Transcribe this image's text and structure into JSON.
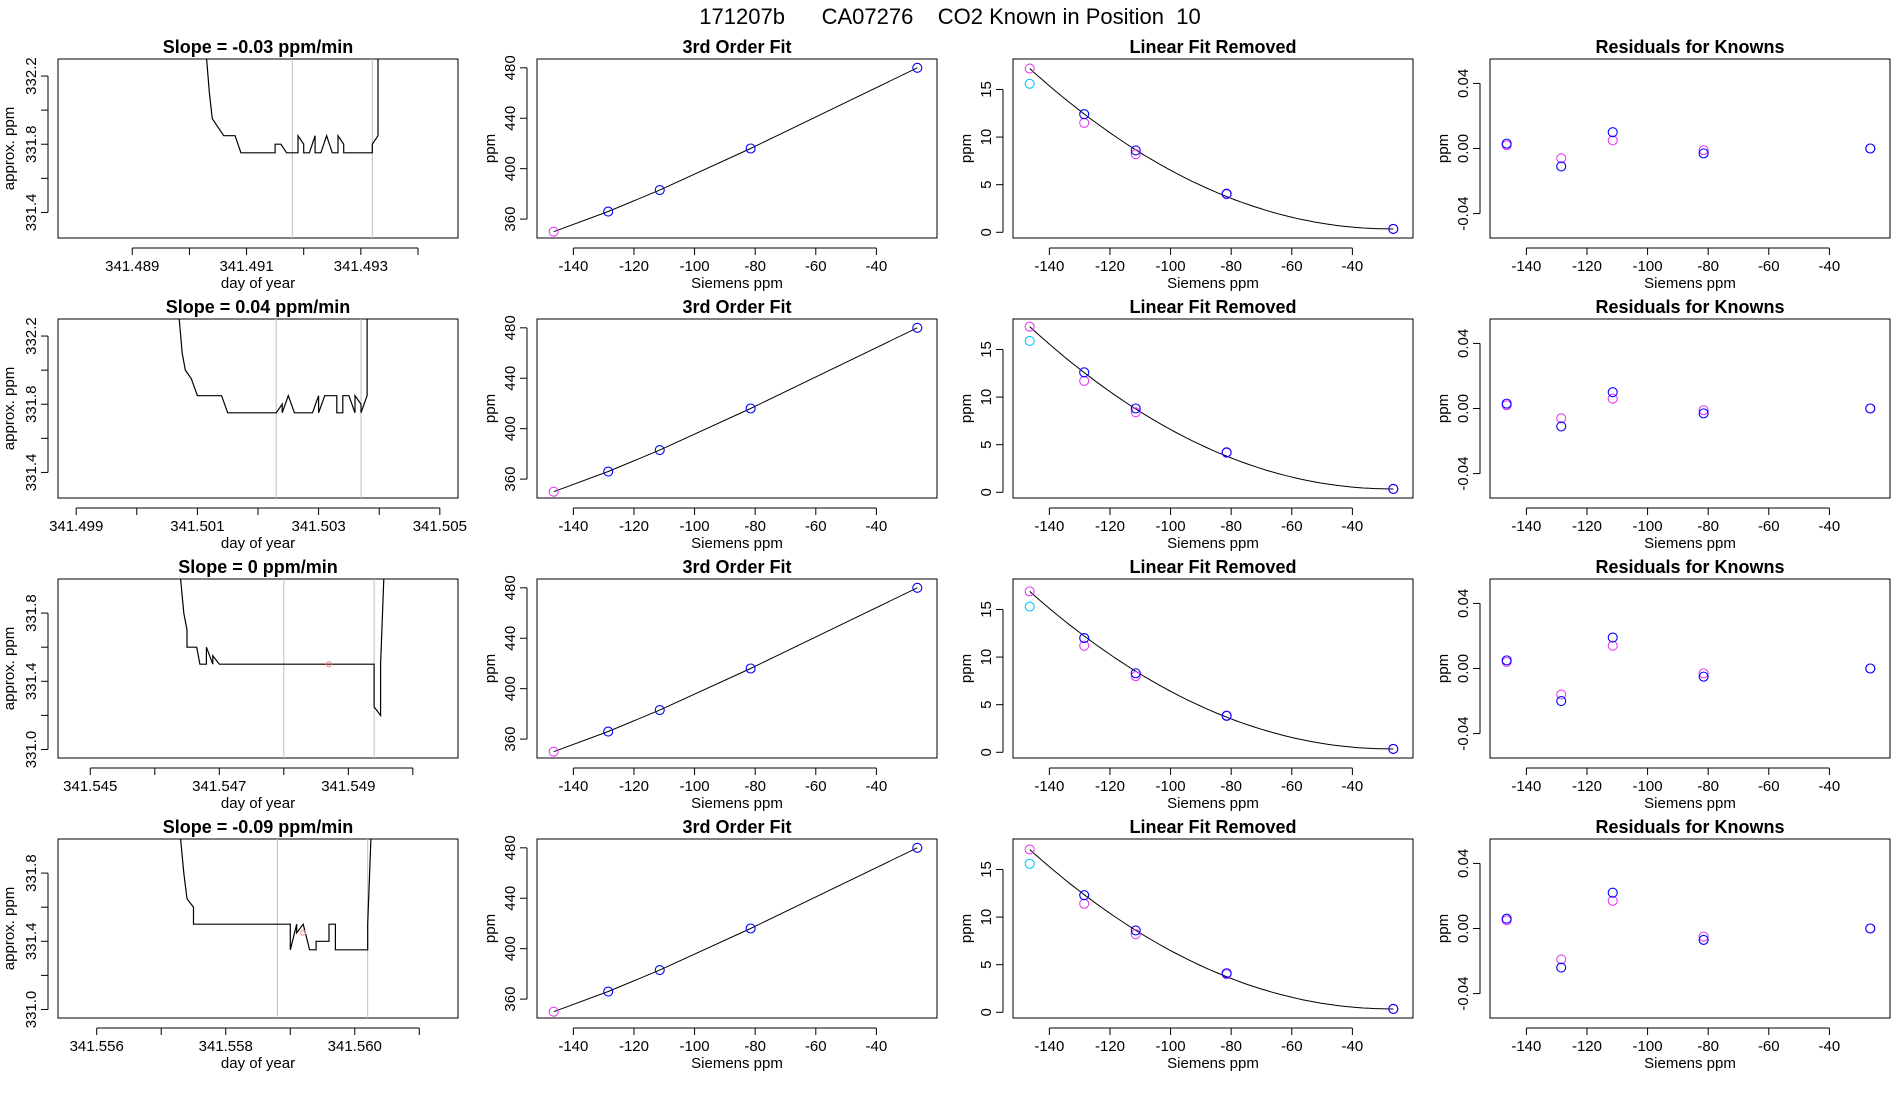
{
  "figure": {
    "title": "171207b      CA07276    CO2 Known in Position  10",
    "colors": {
      "line": "#000000",
      "grid": "#bebebe",
      "blue": "#0000ff",
      "magenta": "#e63cf5",
      "cyan": "#00c8ff",
      "pink": "#ff8080"
    }
  },
  "chart_data": [
    {
      "type": "line",
      "row": 1,
      "panel": "timeseries",
      "title": "Slope =  -0.03  ppm/min",
      "xlabel": "day of year",
      "ylabel": "approx. ppm",
      "xlim": [
        341.4877,
        341.4947
      ],
      "ylim": [
        331.25,
        332.3
      ],
      "x_ticks": [
        341.489,
        341.49,
        341.491,
        341.492,
        341.493,
        341.494
      ],
      "x_tick_labels": [
        "341.489",
        "",
        "341.491",
        "",
        "341.493",
        ""
      ],
      "y_ticks": [
        331.4,
        331.6,
        331.8,
        332.0,
        332.2
      ],
      "y_tick_labels": [
        "331.4",
        "",
        "331.8",
        "",
        "332.2"
      ],
      "vlines": [
        341.4918,
        341.4932
      ],
      "series": [
        {
          "x": [
            341.4903,
            341.49035,
            341.4904,
            341.4905,
            341.4906,
            341.49065,
            341.4908,
            341.4909,
            341.4915,
            341.4915,
            341.4916,
            341.4917,
            341.4917,
            341.4918,
            341.4919,
            341.4919,
            341.492,
            341.492,
            341.4921,
            341.4922,
            341.4922,
            341.4923,
            341.4923,
            341.4924,
            341.4924,
            341.4925,
            341.4926,
            341.4926,
            341.4927,
            341.4927,
            341.4932,
            341.4932,
            341.4933,
            341.4933
          ],
          "y": [
            332.3,
            332.1,
            331.95,
            331.9,
            331.85,
            331.85,
            331.85,
            331.75,
            331.75,
            331.8,
            331.8,
            331.75,
            331.75,
            331.75,
            331.75,
            331.85,
            331.8,
            331.75,
            331.75,
            331.85,
            331.75,
            331.75,
            331.75,
            331.85,
            331.85,
            331.75,
            331.75,
            331.85,
            331.8,
            331.75,
            331.75,
            331.8,
            331.85,
            332.3
          ]
        }
      ]
    },
    {
      "type": "line",
      "row": 2,
      "panel": "timeseries",
      "title": "Slope =  0.04  ppm/min",
      "xlabel": "day of year",
      "ylabel": "approx. ppm",
      "xlim": [
        341.4987,
        341.5053
      ],
      "ylim": [
        331.25,
        332.3
      ],
      "x_ticks": [
        341.499,
        341.5,
        341.501,
        341.502,
        341.503,
        341.504,
        341.505
      ],
      "x_tick_labels": [
        "341.499",
        "",
        "341.501",
        "",
        "341.503",
        "",
        "341.505"
      ],
      "y_ticks": [
        331.4,
        331.6,
        331.8,
        332.0,
        332.2
      ],
      "y_tick_labels": [
        "331.4",
        "",
        "331.8",
        "",
        "332.2"
      ],
      "vlines": [
        341.5023,
        341.5037
      ],
      "series": [
        {
          "x": [
            341.5007,
            341.50075,
            341.5008,
            341.5009,
            341.501,
            341.50105,
            341.5014,
            341.5015,
            341.5023,
            341.5023,
            341.5024,
            341.5024,
            341.5025,
            341.5025,
            341.5026,
            341.5029,
            341.503,
            341.503,
            341.5031,
            341.5031,
            341.5033,
            341.5033,
            341.5034,
            341.5034,
            341.5035,
            341.5035,
            341.5036,
            341.5036,
            341.5037,
            341.5037,
            341.5038,
            341.5038
          ],
          "y": [
            332.3,
            332.1,
            332.0,
            331.95,
            331.85,
            331.85,
            331.85,
            331.75,
            331.75,
            331.75,
            331.8,
            331.75,
            331.85,
            331.85,
            331.75,
            331.75,
            331.85,
            331.75,
            331.85,
            331.85,
            331.85,
            331.75,
            331.75,
            331.85,
            331.85,
            331.85,
            331.75,
            331.85,
            331.8,
            331.75,
            331.85,
            332.3
          ]
        }
      ]
    },
    {
      "type": "line",
      "row": 3,
      "panel": "timeseries",
      "title": "Slope =  0  ppm/min",
      "xlabel": "day of year",
      "ylabel": "approx. ppm",
      "xlim": [
        341.5445,
        341.5507
      ],
      "ylim": [
        330.95,
        332.0
      ],
      "x_ticks": [
        341.545,
        341.546,
        341.547,
        341.548,
        341.549,
        341.55
      ],
      "x_tick_labels": [
        "341.545",
        "",
        "341.547",
        "",
        "341.549",
        ""
      ],
      "y_ticks": [
        331.0,
        331.2,
        331.4,
        331.6,
        331.8
      ],
      "y_tick_labels": [
        "331.0",
        "",
        "331.4",
        "",
        "331.8"
      ],
      "vlines": [
        341.548,
        341.5494
      ],
      "pink_marker": [
        341.5487,
        331.5
      ],
      "series": [
        {
          "x": [
            341.5464,
            341.54645,
            341.5465,
            341.5465,
            341.5466,
            341.54665,
            341.5467,
            341.5468,
            341.5468,
            341.5469,
            341.5469,
            341.547,
            341.5494,
            341.5494,
            341.5495,
            341.5495,
            341.54955
          ],
          "y": [
            332.0,
            331.8,
            331.7,
            331.6,
            331.6,
            331.6,
            331.5,
            331.5,
            331.6,
            331.5,
            331.55,
            331.5,
            331.5,
            331.25,
            331.2,
            331.5,
            332.0
          ]
        }
      ]
    },
    {
      "type": "line",
      "row": 4,
      "panel": "timeseries",
      "title": "Slope =  -0.09  ppm/min",
      "xlabel": "day of year",
      "ylabel": "approx. ppm",
      "xlim": [
        341.5554,
        341.5616
      ],
      "ylim": [
        330.95,
        332.0
      ],
      "x_ticks": [
        341.556,
        341.557,
        341.558,
        341.559,
        341.56,
        341.561
      ],
      "x_tick_labels": [
        "341.556",
        "",
        "341.558",
        "",
        "341.560",
        ""
      ],
      "y_ticks": [
        331.0,
        331.2,
        331.4,
        331.6,
        331.8
      ],
      "y_tick_labels": [
        "331.0",
        "",
        "331.4",
        "",
        "331.8"
      ],
      "vlines": [
        341.5588,
        341.5602
      ],
      "pink_marker": [
        341.5592,
        331.45
      ],
      "series": [
        {
          "x": [
            341.5573,
            341.55735,
            341.5574,
            341.5575,
            341.5575,
            341.5576,
            341.559,
            341.559,
            341.5591,
            341.5591,
            341.5592,
            341.5593,
            341.5594,
            341.5594,
            341.5596,
            341.5596,
            341.5597,
            341.5597,
            341.5598,
            341.5598,
            341.5602,
            341.5602,
            341.56025
          ],
          "y": [
            332.0,
            331.8,
            331.65,
            331.6,
            331.5,
            331.5,
            331.5,
            331.35,
            331.5,
            331.45,
            331.5,
            331.35,
            331.35,
            331.4,
            331.4,
            331.5,
            331.5,
            331.35,
            331.35,
            331.35,
            331.35,
            331.5,
            332.0
          ]
        }
      ]
    },
    {
      "type": "scatter",
      "row": 1,
      "panel": "fit",
      "title": "3rd Order Fit",
      "xlabel": "Siemens ppm",
      "ylabel": "ppm",
      "xlim": [
        -152,
        -20
      ],
      "ylim": [
        345,
        487
      ],
      "x_ticks": [
        -140,
        -120,
        -100,
        -80,
        -60,
        -40
      ],
      "y_ticks": [
        360,
        400,
        440,
        480
      ],
      "x": [
        -146.5,
        -128.5,
        -111.5,
        -81.5,
        -26.5
      ],
      "y": [
        350,
        366,
        383,
        416,
        480
      ],
      "fit_curve": true,
      "magenta_index": [
        0
      ]
    },
    {
      "type": "scatter",
      "row": 2,
      "panel": "fit",
      "title": "3rd Order Fit",
      "xlabel": "Siemens ppm",
      "ylabel": "ppm",
      "xlim": [
        -152,
        -20
      ],
      "ylim": [
        345,
        487
      ],
      "x_ticks": [
        -140,
        -120,
        -100,
        -80,
        -60,
        -40
      ],
      "y_ticks": [
        360,
        400,
        440,
        480
      ],
      "x": [
        -146.5,
        -128.5,
        -111.5,
        -81.5,
        -26.5
      ],
      "y": [
        350,
        366,
        383,
        416,
        480
      ],
      "fit_curve": true,
      "magenta_index": [
        0
      ]
    },
    {
      "type": "scatter",
      "row": 3,
      "panel": "fit",
      "title": "3rd Order Fit",
      "xlabel": "Siemens ppm",
      "ylabel": "ppm",
      "xlim": [
        -152,
        -20
      ],
      "ylim": [
        345,
        487
      ],
      "x_ticks": [
        -140,
        -120,
        -100,
        -80,
        -60,
        -40
      ],
      "y_ticks": [
        360,
        400,
        440,
        480
      ],
      "x": [
        -146.5,
        -128.5,
        -111.5,
        -81.5,
        -26.5
      ],
      "y": [
        350,
        366,
        383,
        416,
        480
      ],
      "fit_curve": true,
      "magenta_index": [
        0
      ]
    },
    {
      "type": "scatter",
      "row": 4,
      "panel": "fit",
      "title": "3rd Order Fit",
      "xlabel": "Siemens ppm",
      "ylabel": "ppm",
      "xlim": [
        -152,
        -20
      ],
      "ylim": [
        345,
        487
      ],
      "x_ticks": [
        -140,
        -120,
        -100,
        -80,
        -60,
        -40
      ],
      "y_ticks": [
        360,
        400,
        440,
        480
      ],
      "x": [
        -146.5,
        -128.5,
        -111.5,
        -81.5,
        -26.5
      ],
      "y": [
        350,
        366,
        383,
        416,
        480
      ],
      "fit_curve": true,
      "magenta_index": [
        0
      ]
    },
    {
      "type": "scatter",
      "row": 1,
      "panel": "linear_removed",
      "title": "Linear Fit Removed",
      "xlabel": "Siemens ppm",
      "ylabel": "ppm",
      "xlim": [
        -152,
        -20
      ],
      "ylim": [
        -0.6,
        18.2
      ],
      "x_ticks": [
        -140,
        -120,
        -100,
        -80,
        -60,
        -40
      ],
      "y_ticks": [
        0,
        5,
        10,
        15
      ],
      "x_blue": [
        -128.5,
        -111.5,
        -81.5,
        -26.5
      ],
      "y_blue": [
        12.4,
        8.6,
        4.05,
        0.35
      ],
      "x_magenta": [
        -146.5,
        -128.5,
        -111.5,
        -81.5,
        -26.5
      ],
      "y_magenta": [
        17.2,
        11.5,
        8.2,
        4.0,
        0.35
      ],
      "x_cyan": [
        -146.5
      ],
      "y_cyan": [
        15.6
      ],
      "curve": {
        "x0": -146.5,
        "y0": 17.2,
        "x1": -26.5,
        "y1": 0.35,
        "k": 2.05
      }
    },
    {
      "type": "scatter",
      "row": 2,
      "panel": "linear_removed",
      "title": "Linear Fit Removed",
      "xlabel": "Siemens ppm",
      "ylabel": "ppm",
      "xlim": [
        -152,
        -20
      ],
      "ylim": [
        -0.6,
        18.2
      ],
      "x_ticks": [
        -140,
        -120,
        -100,
        -80,
        -60,
        -40
      ],
      "y_ticks": [
        0,
        5,
        10,
        15
      ],
      "x_blue": [
        -128.5,
        -111.5,
        -81.5,
        -26.5
      ],
      "y_blue": [
        12.6,
        8.8,
        4.2,
        0.35
      ],
      "x_magenta": [
        -146.5,
        -128.5,
        -111.5,
        -81.5,
        -26.5
      ],
      "y_magenta": [
        17.4,
        11.7,
        8.4,
        4.15,
        0.35
      ],
      "x_cyan": [
        -146.5
      ],
      "y_cyan": [
        15.9
      ],
      "curve": {
        "x0": -146.5,
        "y0": 17.4,
        "x1": -26.5,
        "y1": 0.35,
        "k": 2.05
      }
    },
    {
      "type": "scatter",
      "row": 3,
      "panel": "linear_removed",
      "title": "Linear Fit Removed",
      "xlabel": "Siemens ppm",
      "ylabel": "ppm",
      "xlim": [
        -152,
        -20
      ],
      "ylim": [
        -0.6,
        18.2
      ],
      "x_ticks": [
        -140,
        -120,
        -100,
        -80,
        -60,
        -40
      ],
      "y_ticks": [
        0,
        5,
        10,
        15
      ],
      "x_blue": [
        -128.5,
        -111.5,
        -81.5,
        -26.5
      ],
      "y_blue": [
        12.0,
        8.3,
        3.85,
        0.35
      ],
      "x_magenta": [
        -146.5,
        -128.5,
        -111.5,
        -81.5,
        -26.5
      ],
      "y_magenta": [
        16.9,
        11.2,
        8.0,
        3.8,
        0.35
      ],
      "x_cyan": [
        -146.5
      ],
      "y_cyan": [
        15.3
      ],
      "curve": {
        "x0": -146.5,
        "y0": 16.9,
        "x1": -26.5,
        "y1": 0.35,
        "k": 2.05
      }
    },
    {
      "type": "scatter",
      "row": 4,
      "panel": "linear_removed",
      "title": "Linear Fit Removed",
      "xlabel": "Siemens ppm",
      "ylabel": "ppm",
      "xlim": [
        -152,
        -20
      ],
      "ylim": [
        -0.6,
        18.2
      ],
      "x_ticks": [
        -140,
        -120,
        -100,
        -80,
        -60,
        -40
      ],
      "y_ticks": [
        0,
        5,
        10,
        15
      ],
      "x_blue": [
        -128.5,
        -111.5,
        -81.5,
        -26.5
      ],
      "y_blue": [
        12.3,
        8.6,
        4.1,
        0.35
      ],
      "x_magenta": [
        -146.5,
        -128.5,
        -111.5,
        -81.5,
        -26.5
      ],
      "y_magenta": [
        17.1,
        11.4,
        8.2,
        4.0,
        0.35
      ],
      "x_cyan": [
        -146.5
      ],
      "y_cyan": [
        15.6
      ],
      "curve": {
        "x0": -146.5,
        "y0": 17.1,
        "x1": -26.5,
        "y1": 0.35,
        "k": 2.05
      }
    },
    {
      "type": "scatter",
      "row": 1,
      "panel": "residuals",
      "title": "Residuals for Knowns",
      "xlabel": "Siemens ppm",
      "ylabel": "ppm",
      "xlim": [
        -152,
        -20
      ],
      "ylim": [
        -0.055,
        0.055
      ],
      "x_ticks": [
        -140,
        -120,
        -100,
        -80,
        -60,
        -40
      ],
      "y_ticks": [
        -0.04,
        0.0,
        0.04
      ],
      "y_tick_labels": [
        "-0.04",
        "0.00",
        "0.04"
      ],
      "x_blue": [
        -146.5,
        -128.5,
        -111.5,
        -81.5,
        -26.5
      ],
      "y_blue": [
        0.003,
        -0.011,
        0.01,
        -0.003,
        0.0
      ],
      "x_magenta": [
        -146.5,
        -128.5,
        -111.5,
        -81.5,
        -26.5
      ],
      "y_magenta": [
        0.002,
        -0.006,
        0.005,
        -0.001,
        0.0
      ]
    },
    {
      "type": "scatter",
      "row": 2,
      "panel": "residuals",
      "title": "Residuals for Knowns",
      "xlabel": "Siemens ppm",
      "ylabel": "ppm",
      "xlim": [
        -152,
        -20
      ],
      "ylim": [
        -0.055,
        0.055
      ],
      "x_ticks": [
        -140,
        -120,
        -100,
        -80,
        -60,
        -40
      ],
      "y_ticks": [
        -0.04,
        0.0,
        0.04
      ],
      "y_tick_labels": [
        "-0.04",
        "0.00",
        "0.04"
      ],
      "x_blue": [
        -146.5,
        -128.5,
        -111.5,
        -81.5,
        -26.5
      ],
      "y_blue": [
        0.003,
        -0.011,
        0.01,
        -0.003,
        0.0
      ],
      "x_magenta": [
        -146.5,
        -128.5,
        -111.5,
        -81.5,
        -26.5
      ],
      "y_magenta": [
        0.002,
        -0.006,
        0.006,
        -0.001,
        0.0
      ]
    },
    {
      "type": "scatter",
      "row": 3,
      "panel": "residuals",
      "title": "Residuals for Knowns",
      "xlabel": "Siemens ppm",
      "ylabel": "ppm",
      "xlim": [
        -152,
        -20
      ],
      "ylim": [
        -0.055,
        0.055
      ],
      "x_ticks": [
        -140,
        -120,
        -100,
        -80,
        -60,
        -40
      ],
      "y_ticks": [
        -0.04,
        0.0,
        0.04
      ],
      "y_tick_labels": [
        "-0.04",
        "0.00",
        "0.04"
      ],
      "x_blue": [
        -146.5,
        -128.5,
        -111.5,
        -81.5,
        -26.5
      ],
      "y_blue": [
        0.005,
        -0.02,
        0.019,
        -0.005,
        0.0
      ],
      "x_magenta": [
        -146.5,
        -128.5,
        -111.5,
        -81.5,
        -26.5
      ],
      "y_magenta": [
        0.004,
        -0.016,
        0.014,
        -0.003,
        0.0
      ]
    },
    {
      "type": "scatter",
      "row": 4,
      "panel": "residuals",
      "title": "Residuals for Knowns",
      "xlabel": "Siemens ppm",
      "ylabel": "ppm",
      "xlim": [
        -152,
        -20
      ],
      "ylim": [
        -0.055,
        0.055
      ],
      "x_ticks": [
        -140,
        -120,
        -100,
        -80,
        -60,
        -40
      ],
      "y_ticks": [
        -0.04,
        0.0,
        0.04
      ],
      "y_tick_labels": [
        "-0.04",
        "0.00",
        "0.04"
      ],
      "x_blue": [
        -146.5,
        -128.5,
        -111.5,
        -81.5,
        -26.5
      ],
      "y_blue": [
        0.006,
        -0.024,
        0.022,
        -0.007,
        0.0
      ],
      "x_magenta": [
        -146.5,
        -128.5,
        -111.5,
        -81.5,
        -26.5
      ],
      "y_magenta": [
        0.005,
        -0.019,
        0.017,
        -0.005,
        0.0
      ]
    }
  ]
}
